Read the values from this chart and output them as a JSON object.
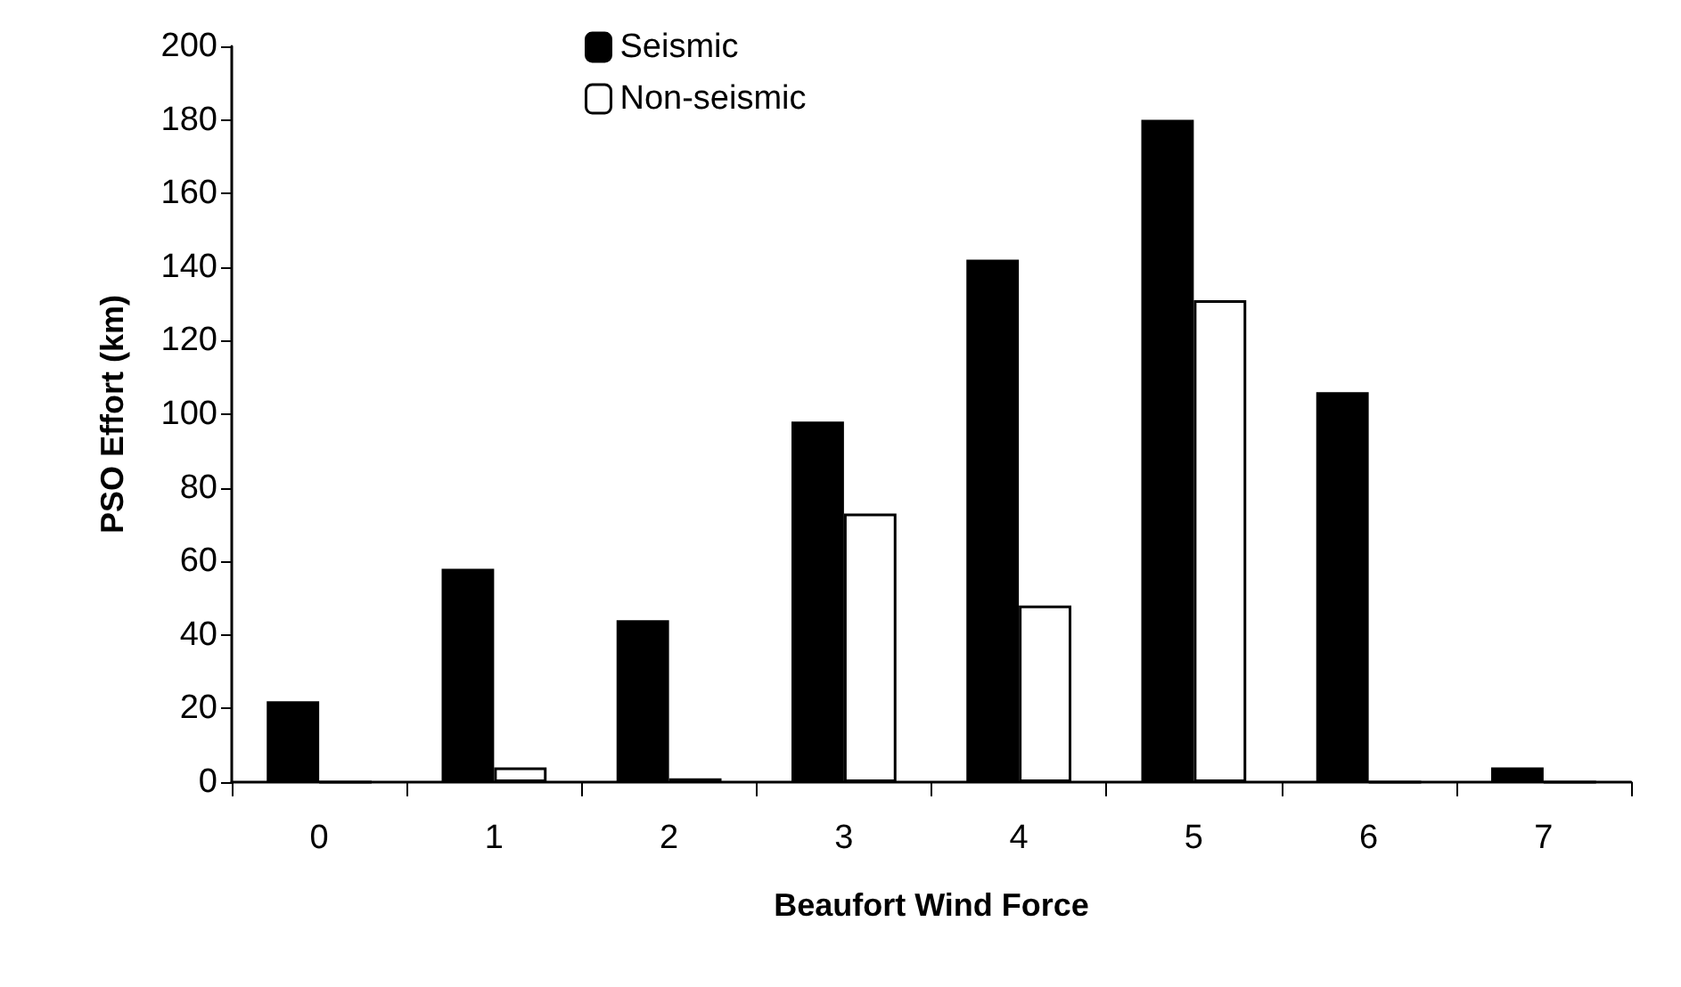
{
  "chart_data": {
    "type": "bar",
    "xlabel": "Beaufort Wind Force",
    "ylabel": "PSO Effort (km)",
    "categories": [
      "0",
      "1",
      "2",
      "3",
      "4",
      "5",
      "6",
      "7"
    ],
    "series": [
      {
        "name": "Seismic",
        "color": "#000000",
        "values": [
          22,
          58,
          44,
          98,
          142,
          180,
          106,
          4
        ]
      },
      {
        "name": "Non-seismic",
        "color": "#ffffff",
        "values": [
          0,
          4,
          1,
          73,
          48,
          131,
          0,
          0
        ]
      }
    ],
    "ylim": [
      0,
      200
    ],
    "yticks": [
      0,
      20,
      40,
      60,
      80,
      100,
      120,
      140,
      160,
      180,
      200
    ],
    "grid": false,
    "legend": "top"
  }
}
